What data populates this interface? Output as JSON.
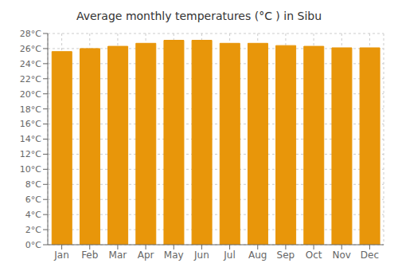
{
  "chart_data": {
    "type": "bar",
    "title": "Average monthly temperatures (°C ) in Sibu",
    "categories": [
      "Jan",
      "Feb",
      "Mar",
      "Apr",
      "May",
      "Jun",
      "Jul",
      "Aug",
      "Sep",
      "Oct",
      "Nov",
      "Dec"
    ],
    "values": [
      25.6,
      26.0,
      26.3,
      26.7,
      27.1,
      27.1,
      26.7,
      26.7,
      26.4,
      26.3,
      26.1,
      26.1
    ],
    "color": "#E8960A",
    "ylim": [
      0,
      28
    ],
    "yticks": [
      {
        "value": 0,
        "label": "0°C"
      },
      {
        "value": 2,
        "label": "2°C"
      },
      {
        "value": 4,
        "label": "4°C"
      },
      {
        "value": 6,
        "label": "6°C"
      },
      {
        "value": 8,
        "label": "8°C"
      },
      {
        "value": 10,
        "label": "10°C"
      },
      {
        "value": 12,
        "label": "12°C"
      },
      {
        "value": 14,
        "label": "14°C"
      },
      {
        "value": 16,
        "label": "16°C"
      },
      {
        "value": 18,
        "label": "18°C"
      },
      {
        "value": 20,
        "label": "20°C"
      },
      {
        "value": 22,
        "label": "22°C"
      },
      {
        "value": 24,
        "label": "24°C"
      },
      {
        "value": 26,
        "label": "26°C"
      },
      {
        "value": 28,
        "label": "28°C"
      }
    ],
    "grid": true
  }
}
